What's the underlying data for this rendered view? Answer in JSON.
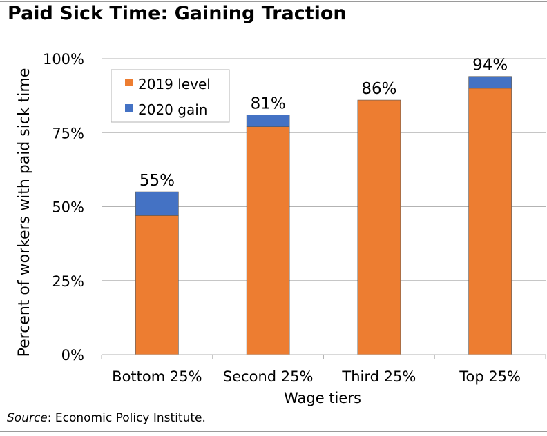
{
  "title": "Paid Sick Time: Gaining Traction",
  "source": {
    "prefix": "Source",
    "text": ": Economic Policy Institute."
  },
  "colors": {
    "base": "#ed7d31",
    "gain": "#4472c4",
    "grid": "#b3b3b3"
  },
  "chart_data": {
    "type": "bar",
    "stacked": true,
    "xlabel": "Wage tiers",
    "ylabel": "Percent of workers with paid sick time",
    "ylim": [
      0,
      100
    ],
    "yticks": [
      "0%",
      "25%",
      "50%",
      "75%",
      "100%"
    ],
    "categories": [
      "Bottom 25%",
      "Second 25%",
      "Third 25%",
      "Top 25%"
    ],
    "series": [
      {
        "name": "2019 level",
        "values": [
          47,
          77,
          86,
          90
        ]
      },
      {
        "name": "2020 gain",
        "values": [
          8,
          4,
          0,
          4
        ]
      }
    ],
    "data_labels": [
      "55%",
      "81%",
      "86%",
      "94%"
    ],
    "legend": "top-left",
    "grid": true
  }
}
